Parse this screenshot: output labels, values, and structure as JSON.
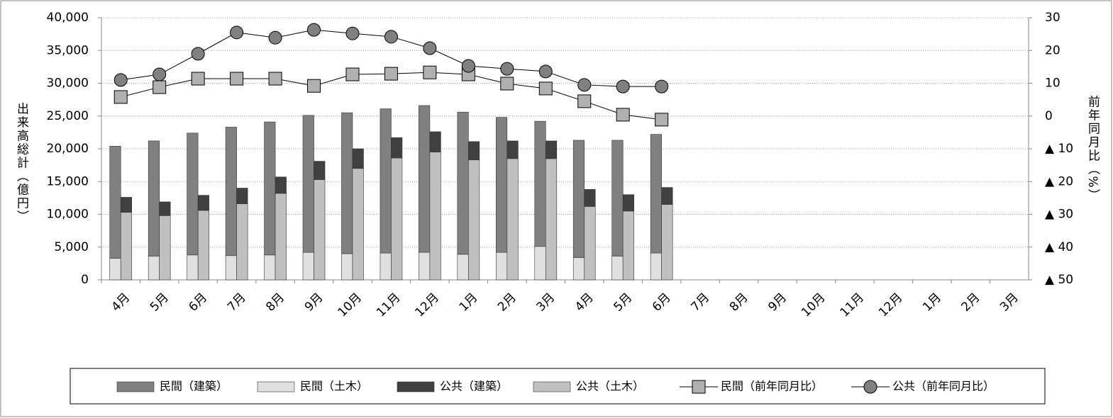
{
  "chart_data": {
    "type": "bar",
    "categories": [
      "4月",
      "5月",
      "6月",
      "7月",
      "8月",
      "9月",
      "10月",
      "11月",
      "12月",
      "1月",
      "2月",
      "3月",
      "4月",
      "5月",
      "6月",
      "7月",
      "8月",
      "9月",
      "10月",
      "11月",
      "12月",
      "1月",
      "2月",
      "3月"
    ],
    "ylabel": "出来高総計（億円）",
    "y2label": "前年同月比（%）",
    "ylim": [
      0,
      40000
    ],
    "yticks": [
      0,
      {
        "value": 5000,
        "label": "5,000"
      },
      {
        "value": 10000,
        "label": "10,000"
      },
      {
        "value": 15000,
        "label": "15,000"
      },
      {
        "value": 20000,
        "label": "20,000"
      },
      {
        "value": 25000,
        "label": "25,000"
      },
      {
        "value": 30000,
        "label": "30,000"
      },
      {
        "value": 35000,
        "label": "35,000"
      },
      {
        "value": 40000,
        "label": "40,000"
      }
    ],
    "y2lim": [
      -50,
      30
    ],
    "y2ticks": [
      30,
      20,
      10,
      0,
      {
        "value": -10,
        "label": "▲ 10"
      },
      {
        "value": -20,
        "label": "▲ 20"
      },
      {
        "value": -30,
        "label": "▲ 30"
      },
      {
        "value": -40,
        "label": "▲ 40"
      },
      {
        "value": -50,
        "label": "▲ 50"
      }
    ],
    "grid": true,
    "legend": "bottom",
    "series": [
      {
        "name": "民間（建築）",
        "type": "bar",
        "color": "#808080",
        "values": [
          17100,
          17600,
          18600,
          19600,
          20300,
          20900,
          21500,
          22000,
          22400,
          21700,
          20600,
          19100,
          17900,
          17700,
          18100,
          null,
          null,
          null,
          null,
          null,
          null,
          null,
          null,
          null
        ]
      },
      {
        "name": "民間（土木）",
        "type": "bar",
        "color": "#e0e0e0",
        "values": [
          3300,
          3600,
          3800,
          3700,
          3800,
          4200,
          4000,
          4100,
          4200,
          3900,
          4200,
          5100,
          3400,
          3600,
          4100,
          null,
          null,
          null,
          null,
          null,
          null,
          null,
          null,
          null
        ]
      },
      {
        "name": "公共（建築）",
        "type": "bar",
        "color": "#404040",
        "values": [
          2300,
          2100,
          2300,
          2400,
          2500,
          2800,
          3000,
          3100,
          3100,
          2800,
          2700,
          2700,
          2600,
          2500,
          2600,
          null,
          null,
          null,
          null,
          null,
          null,
          null,
          null,
          null
        ]
      },
      {
        "name": "公共（土木）",
        "type": "bar",
        "color": "#c0c0c0",
        "values": [
          10300,
          9800,
          10600,
          11600,
          13200,
          15300,
          17000,
          18600,
          19500,
          18300,
          18500,
          18500,
          11200,
          10500,
          11500,
          null,
          null,
          null,
          null,
          null,
          null,
          null,
          null,
          null
        ]
      },
      {
        "name": "民間（前年同月比）",
        "type": "line",
        "marker": "square",
        "axis": "y2",
        "color": "#b0b0b0",
        "values": [
          5.8,
          8.8,
          11.4,
          11.4,
          11.4,
          9.2,
          12.7,
          12.9,
          13.3,
          12.7,
          9.9,
          8.4,
          4.5,
          0.4,
          -1.1,
          null,
          null,
          null,
          null,
          null,
          null,
          null,
          null,
          null
        ]
      },
      {
        "name": "公共（前年同月比）",
        "type": "line",
        "marker": "circle",
        "axis": "y2",
        "color": "#808080",
        "values": [
          11.0,
          12.7,
          19.0,
          25.5,
          23.9,
          26.3,
          25.2,
          24.2,
          20.7,
          15.3,
          14.4,
          13.6,
          9.5,
          9.0,
          9.0,
          null,
          null,
          null,
          null,
          null,
          null,
          null,
          null,
          null
        ]
      }
    ]
  }
}
